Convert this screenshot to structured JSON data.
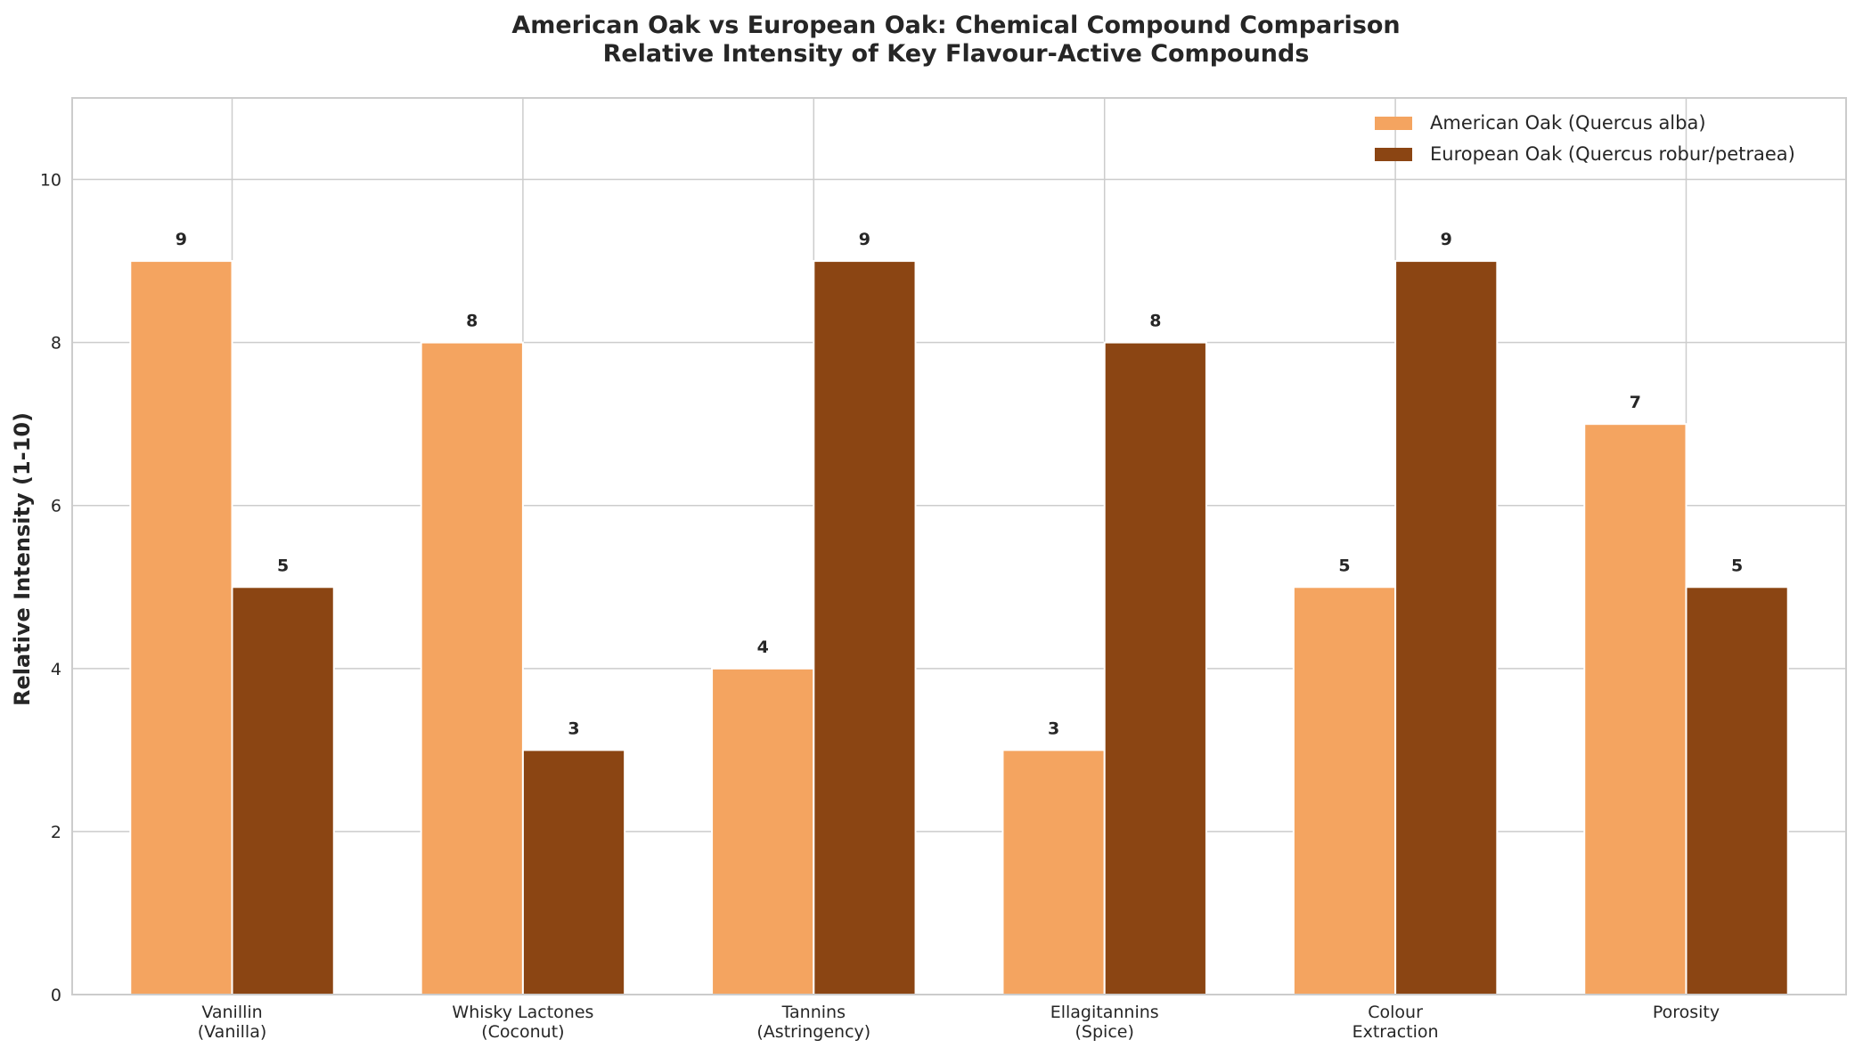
{
  "chart_data": {
    "type": "bar",
    "title": "American Oak vs European Oak: Chemical Compound Comparison",
    "subtitle": "Relative Intensity of Key Flavour-Active Compounds",
    "xlabel": "",
    "ylabel": "Relative Intensity (1-10)",
    "ylim": [
      0,
      11
    ],
    "yticks": [
      0,
      2,
      4,
      6,
      8,
      10
    ],
    "grid": true,
    "legend_position": "top-right",
    "categories": [
      [
        "Vanillin",
        "(Vanilla)"
      ],
      [
        "Whisky Lactones",
        "(Coconut)"
      ],
      [
        "Tannins",
        "(Astringency)"
      ],
      [
        "Ellagitannins",
        "(Spice)"
      ],
      [
        "Colour",
        "Extraction"
      ],
      [
        "Porosity"
      ]
    ],
    "series": [
      {
        "name": "American Oak (Quercus alba)",
        "color": "#F4A460",
        "values": [
          9,
          8,
          4,
          3,
          5,
          7
        ]
      },
      {
        "name": "European Oak (Quercus robur/petraea)",
        "color": "#8B4513",
        "values": [
          5,
          3,
          9,
          8,
          9,
          5
        ]
      }
    ]
  }
}
